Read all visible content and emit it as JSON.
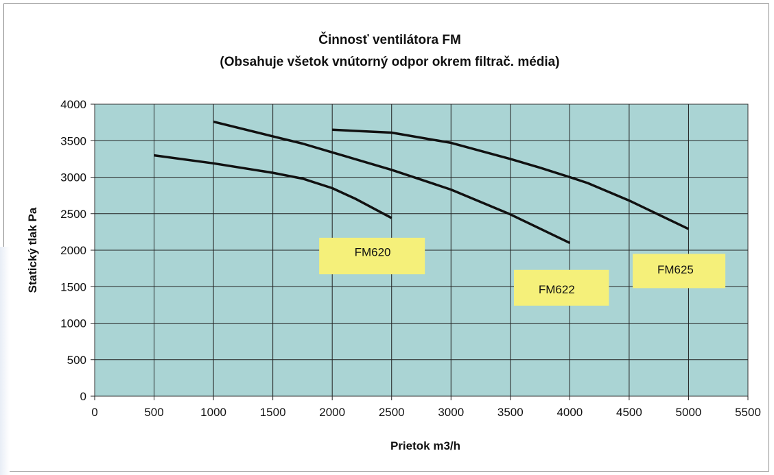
{
  "chart_data": {
    "type": "line",
    "title": "Činnosť ventilátora FM",
    "subtitle": "(Obsahuje všetok vnútorný odpor okrem filtrač. média)",
    "xlabel": "Prietok m3/h",
    "ylabel": "Statický tlak Pa",
    "xlim": [
      0,
      5500
    ],
    "ylim": [
      0,
      4000
    ],
    "x_ticks": [
      "0",
      "500",
      "1000",
      "1500",
      "2000",
      "2500",
      "3000",
      "3500",
      "4000",
      "4500",
      "5000",
      "5500"
    ],
    "y_ticks": [
      "0",
      "500",
      "1000",
      "1500",
      "2000",
      "2500",
      "3000",
      "3500",
      "4000"
    ],
    "grid": true,
    "plot_background": "#aad4d4",
    "label_background": "#f5f07a",
    "line_color": "#111111",
    "series": [
      {
        "name": "FM620",
        "points": [
          [
            500,
            3300
          ],
          [
            1000,
            3190
          ],
          [
            1500,
            3060
          ],
          [
            1750,
            2980
          ],
          [
            2000,
            2850
          ],
          [
            2200,
            2700
          ],
          [
            2500,
            2440
          ]
        ]
      },
      {
        "name": "FM622",
        "points": [
          [
            1000,
            3760
          ],
          [
            1500,
            3560
          ],
          [
            1750,
            3460
          ],
          [
            2000,
            3340
          ],
          [
            2500,
            3100
          ],
          [
            3000,
            2830
          ],
          [
            3500,
            2490
          ],
          [
            4000,
            2100
          ]
        ]
      },
      {
        "name": "FM625",
        "points": [
          [
            2000,
            3650
          ],
          [
            2500,
            3610
          ],
          [
            3000,
            3470
          ],
          [
            3500,
            3250
          ],
          [
            3750,
            3130
          ],
          [
            4000,
            3000
          ],
          [
            4150,
            2920
          ],
          [
            4500,
            2680
          ],
          [
            5000,
            2290
          ]
        ]
      }
    ]
  }
}
